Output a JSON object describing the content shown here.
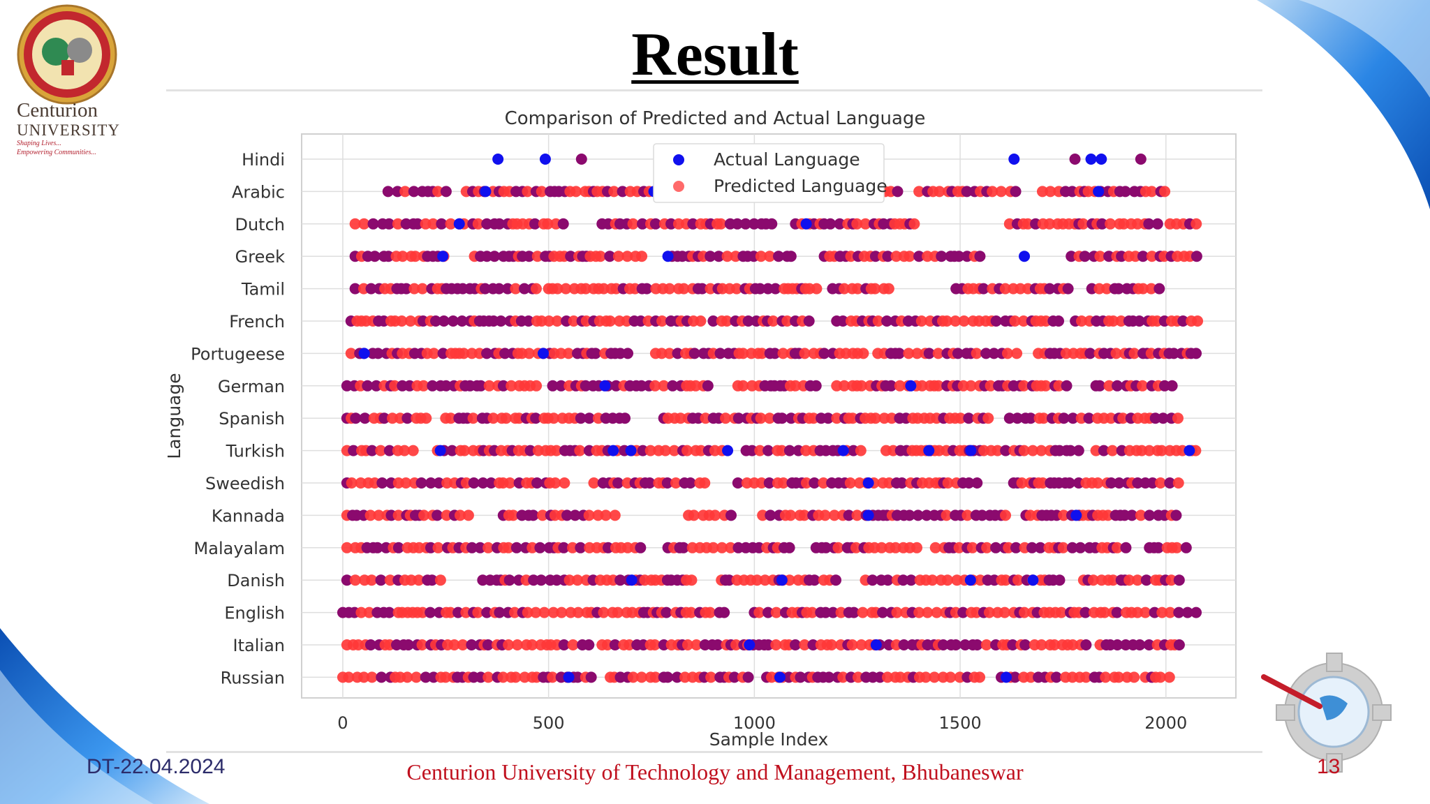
{
  "slide": {
    "title": "Result",
    "university_line1": "Centurion",
    "university_line2": "UNIVERSITY",
    "tagline1": "Shaping Lives...",
    "tagline2": "Empowering Communities...",
    "date": "DT-22.04.2024",
    "footer": "Centurion University of Technology and Management, Bhubaneswar",
    "page_number": "13"
  },
  "colors": {
    "actual": "#1010ee",
    "predicted": "#ff3838",
    "overlap": "#8b0a6e",
    "title_text": "#000000",
    "footer_text": "#c0101e",
    "accent_blue": "#2a7de0"
  },
  "chart_data": {
    "type": "scatter",
    "title": "Comparison of Predicted and Actual Language",
    "xlabel": "Sample Index",
    "ylabel": "Language",
    "xlim": [
      -100,
      2170
    ],
    "xticks": [
      0,
      500,
      1000,
      1500,
      2000
    ],
    "categories": [
      "Hindi",
      "Arabic",
      "Dutch",
      "Greek",
      "Tamil",
      "French",
      "Portugeese",
      "German",
      "Spanish",
      "Turkish",
      "Sweedish",
      "Kannada",
      "Malayalam",
      "Danish",
      "English",
      "Italian",
      "Russian"
    ],
    "grid": true,
    "legend_position": "top-center",
    "series": [
      {
        "name": "Actual Language",
        "marker": "blue circle"
      },
      {
        "name": "Predicted Language",
        "marker": "red circle, semi-transparent"
      }
    ],
    "density": {
      "Hindi": {
        "clusters": [
          [
            580,
            580
          ]
        ],
        "blue_points": [
          377,
          492,
          1631,
          1818,
          1843
        ],
        "purple_points": [
          1779,
          1939
        ]
      },
      "Arabic": {
        "clusters": [
          [
            110,
            260
          ],
          [
            300,
            810
          ],
          [
            850,
            1350
          ],
          [
            1400,
            1650
          ],
          [
            1700,
            2010
          ]
        ],
        "blue_points": [
          347,
          756,
          1836
        ]
      },
      "Dutch": {
        "clusters": [
          [
            30,
            540
          ],
          [
            630,
            1050
          ],
          [
            1100,
            1400
          ],
          [
            1620,
            1990
          ],
          [
            2010,
            2080
          ]
        ],
        "blue_points": [
          283,
          1126
        ]
      },
      "Greek": {
        "clusters": [
          [
            30,
            260
          ],
          [
            320,
            740
          ],
          [
            800,
            1100
          ],
          [
            1170,
            1550
          ],
          [
            1770,
            2080
          ]
        ],
        "blue_points": [
          243,
          790,
          1656
        ]
      },
      "Tamil": {
        "clusters": [
          [
            30,
            480
          ],
          [
            500,
            1170
          ],
          [
            1190,
            1340
          ],
          [
            1490,
            1770
          ],
          [
            1820,
            1990
          ]
        ],
        "blue_points": []
      },
      "French": {
        "clusters": [
          [
            20,
            880
          ],
          [
            900,
            1150
          ],
          [
            1200,
            1740
          ],
          [
            1780,
            2080
          ]
        ],
        "blue_points": []
      },
      "Portugeese": {
        "clusters": [
          [
            20,
            700
          ],
          [
            760,
            1270
          ],
          [
            1300,
            1650
          ],
          [
            1690,
            2080
          ]
        ],
        "blue_points": [
          52,
          487
        ]
      },
      "German": {
        "clusters": [
          [
            10,
            480
          ],
          [
            510,
            890
          ],
          [
            960,
            1160
          ],
          [
            1200,
            1770
          ],
          [
            1830,
            2030
          ]
        ],
        "blue_points": [
          637,
          1380
        ]
      },
      "Spanish": {
        "clusters": [
          [
            10,
            220
          ],
          [
            250,
            700
          ],
          [
            780,
            1210
          ],
          [
            1220,
            1590
          ],
          [
            1620,
            2040
          ]
        ],
        "blue_points": []
      },
      "Turkish": {
        "clusters": [
          [
            10,
            180
          ],
          [
            230,
            930
          ],
          [
            980,
            1270
          ],
          [
            1320,
            1790
          ],
          [
            1830,
            2080
          ]
        ],
        "blue_points": [
          237,
          657,
          700,
          935,
          1216,
          1424,
          1526,
          2057
        ]
      },
      "Sweedish": {
        "clusters": [
          [
            10,
            550
          ],
          [
            610,
            900
          ],
          [
            960,
            1560
          ],
          [
            1630,
            2040
          ]
        ],
        "blue_points": [
          1277
        ]
      },
      "Kannada": {
        "clusters": [
          [
            10,
            310
          ],
          [
            390,
            680
          ],
          [
            840,
            960
          ],
          [
            1020,
            1620
          ],
          [
            1660,
            2040
          ]
        ],
        "blue_points": [
          1277,
          1782
        ]
      },
      "Malayalam": {
        "clusters": [
          [
            10,
            730
          ],
          [
            790,
            1100
          ],
          [
            1150,
            1400
          ],
          [
            1440,
            1920
          ],
          [
            1960,
            2050
          ]
        ],
        "blue_points": []
      },
      "Danish": {
        "clusters": [
          [
            10,
            240
          ],
          [
            340,
            860
          ],
          [
            920,
            1200
          ],
          [
            1270,
            1750
          ],
          [
            1800,
            2040
          ]
        ],
        "blue_points": [
          702,
          1067,
          1525,
          1677
        ]
      },
      "English": {
        "clusters": [
          [
            0,
            940
          ],
          [
            1000,
            2080
          ]
        ],
        "blue_points": []
      },
      "Italian": {
        "clusters": [
          [
            10,
            600
          ],
          [
            630,
            1240
          ],
          [
            1260,
            1810
          ],
          [
            1840,
            2050
          ]
        ],
        "blue_points": [
          988,
          1296
        ]
      },
      "Russian": {
        "clusters": [
          [
            0,
            610
          ],
          [
            650,
            1000
          ],
          [
            1030,
            1560
          ],
          [
            1600,
            1930
          ],
          [
            1950,
            2030
          ]
        ],
        "blue_points": [
          549,
          1062,
          1612
        ]
      }
    }
  }
}
